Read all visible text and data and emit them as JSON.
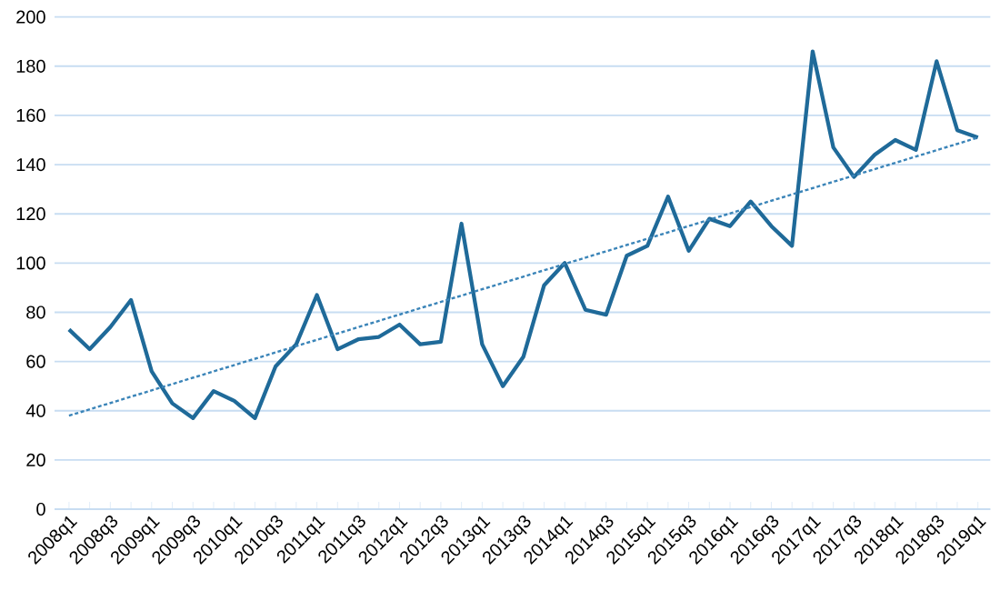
{
  "chart_data": {
    "type": "line",
    "categories": [
      "2008q1",
      null,
      "2008q3",
      null,
      "2009q1",
      null,
      "2009q3",
      null,
      "2010q1",
      null,
      "2010q3",
      null,
      "2011q1",
      null,
      "2011q3",
      null,
      "2012q1",
      null,
      "2012q3",
      null,
      "2013q1",
      null,
      "2013q3",
      null,
      "2014q1",
      null,
      "2014q3",
      null,
      "2015q1",
      null,
      "2015q3",
      null,
      "2016q1",
      null,
      "2016q3",
      null,
      "2017q1",
      null,
      "2017q3",
      null,
      "2018q1",
      null,
      "2018q3",
      null,
      "2019q1"
    ],
    "series": [
      {
        "color": "#1f6a99",
        "line_style": "solid",
        "values": [
          73,
          65,
          74,
          85,
          56,
          43,
          37,
          48,
          44,
          37,
          58,
          67,
          87,
          65,
          69,
          70,
          75,
          67,
          68,
          116,
          67,
          50,
          62,
          91,
          100,
          81,
          79,
          103,
          107,
          127,
          105,
          118,
          115,
          125,
          115,
          107,
          186,
          147,
          135,
          144,
          150,
          146,
          182,
          154,
          151
        ]
      },
      {
        "type": "line",
        "color": "#3a84b8",
        "line_style": "dotted",
        "x": [
          "2008q1",
          "2019q1"
        ],
        "values": [
          38,
          151
        ]
      }
    ],
    "ylim": [
      0,
      200
    ],
    "yticks": [
      0,
      20,
      40,
      60,
      80,
      100,
      120,
      140,
      160,
      180,
      200
    ],
    "grid": "y",
    "marker": "none"
  }
}
